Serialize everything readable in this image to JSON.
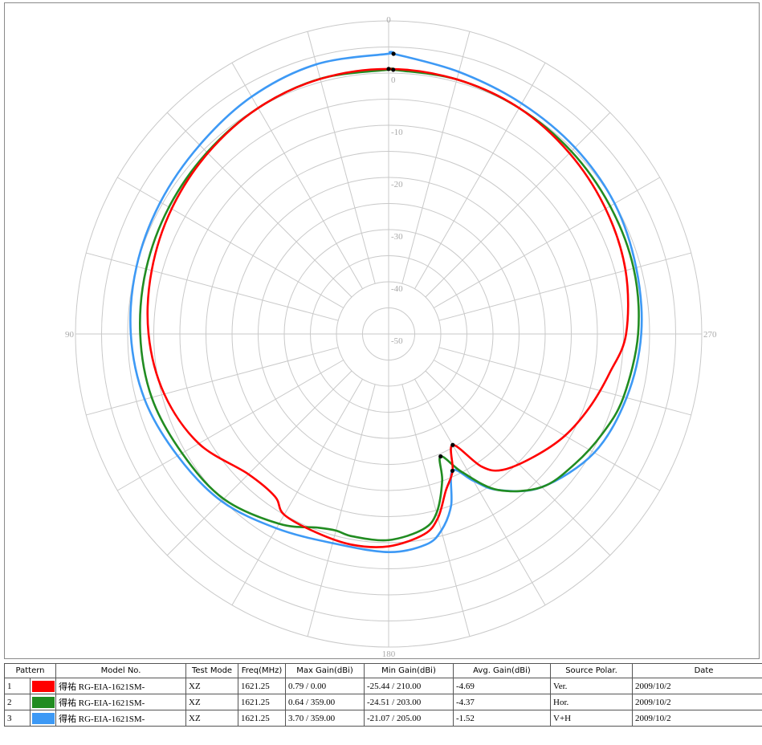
{
  "chart_data": {
    "type": "polar-line",
    "radial_axis": {
      "min": -50,
      "max": 10,
      "tick_labels": [
        "0",
        "-10",
        "-20",
        "-30",
        "-40",
        "-50"
      ],
      "tick_values": [
        0,
        -10,
        -20,
        -30,
        -40,
        -50
      ]
    },
    "angle_labels": [
      {
        "angle": 0,
        "label": "0"
      },
      {
        "angle": 90,
        "label": "90"
      },
      {
        "angle": 180,
        "label": "180"
      },
      {
        "angle": 270,
        "label": "270"
      }
    ],
    "angle_grid_step": 15,
    "grid": true,
    "series": [
      {
        "key": "red",
        "color": "#ff0000",
        "pattern": "1",
        "angles": [
          0,
          15,
          30,
          45,
          60,
          75,
          90,
          105,
          120,
          135,
          145,
          150,
          160,
          170,
          180,
          190,
          195,
          200,
          205,
          210,
          215,
          220,
          230,
          240,
          250,
          260,
          270,
          285,
          300,
          315,
          330,
          345,
          360
        ],
        "values": [
          0.79,
          0.6,
          0,
          -1,
          -2,
          -3,
          -4,
          -5.5,
          -8,
          -12,
          -12,
          -10,
          -9.5,
          -9,
          -9.3,
          -11,
          -13.5,
          -18,
          -21,
          -25.44,
          -19,
          -16,
          -13.5,
          -11,
          -9,
          -7,
          -4.5,
          -3,
          -2,
          -1,
          0,
          0.5,
          0.79
        ],
        "max_marker": {
          "angle": 0,
          "value": 0.79
        },
        "min_marker": {
          "angle": 210,
          "value": -25.44
        }
      },
      {
        "key": "green",
        "color": "#218c21",
        "pattern": "2",
        "angles": [
          0,
          15,
          30,
          45,
          60,
          75,
          90,
          105,
          120,
          135,
          150,
          160,
          165,
          170,
          180,
          190,
          195,
          200,
          203,
          208,
          215,
          225,
          235,
          245,
          255,
          270,
          285,
          300,
          315,
          330,
          345,
          359,
          360
        ],
        "values": [
          0.64,
          0.64,
          0,
          -0.8,
          -1.4,
          -1.9,
          -2.4,
          -3,
          -4.3,
          -5.3,
          -8,
          -10.5,
          -11,
          -10.6,
          -10.5,
          -12,
          -14.5,
          -20,
          -24.51,
          -20,
          -13.5,
          -8.5,
          -6.5,
          -4.8,
          -3.4,
          -2.2,
          -1.4,
          -1,
          -0.5,
          0,
          0.5,
          0.64,
          0.64
        ],
        "max_marker": {
          "angle": 359,
          "value": 0.64
        },
        "min_marker": {
          "angle": 203,
          "value": -24.51
        }
      },
      {
        "key": "blue",
        "color": "#3d99f5",
        "pattern": "3",
        "angles": [
          0,
          15,
          30,
          45,
          60,
          75,
          90,
          105,
          120,
          135,
          150,
          165,
          180,
          190,
          195,
          200,
          205,
          210,
          215,
          225,
          240,
          255,
          270,
          285,
          300,
          315,
          330,
          345,
          359,
          360
        ],
        "values": [
          3.7,
          3.5,
          2.5,
          1.2,
          0.5,
          0,
          -0.6,
          -1.6,
          -3.3,
          -4.7,
          -7,
          -8.5,
          -8.2,
          -9,
          -11,
          -15,
          -21.07,
          -17.5,
          -13.5,
          -8.5,
          -4.5,
          -2.8,
          -1.6,
          -0.9,
          0,
          0.5,
          1,
          2,
          3.7,
          3.7
        ],
        "max_marker": {
          "angle": 359,
          "value": 3.7
        },
        "min_marker": {
          "angle": 205,
          "value": -21.07
        }
      }
    ]
  },
  "legend": {
    "headers": [
      "Pattern",
      "Model No.",
      "Test Mode",
      "Freq(MHz)",
      "Max Gain(dBi)",
      "Min Gain(dBi)",
      "Avg. Gain(dBi)",
      "Source Polar.",
      "Date"
    ],
    "rows": [
      {
        "pattern": "1",
        "color": "#ff0000",
        "model": "得祐 RG-EIA-1621SM-",
        "mode": "XZ",
        "freq": "1621.25",
        "max_gain": "0.79 / 0.00",
        "min_gain": "-25.44 / 210.00",
        "avg_gain": "-4.69",
        "polar": "Ver.",
        "date": "2009/10/2"
      },
      {
        "pattern": "2",
        "color": "#218c21",
        "model": "得祐 RG-EIA-1621SM-",
        "mode": "XZ",
        "freq": "1621.25",
        "max_gain": "0.64 / 359.00",
        "min_gain": "-24.51 / 203.00",
        "avg_gain": "-4.37",
        "polar": "Hor.",
        "date": "2009/10/2"
      },
      {
        "pattern": "3",
        "color": "#3d99f5",
        "model": "得祐 RG-EIA-1621SM-",
        "mode": "XZ",
        "freq": "1621.25",
        "max_gain": "3.70 / 359.00",
        "min_gain": "-21.07 / 205.00",
        "avg_gain": "-1.52",
        "polar": "V+H",
        "date": "2009/10/2"
      }
    ]
  }
}
